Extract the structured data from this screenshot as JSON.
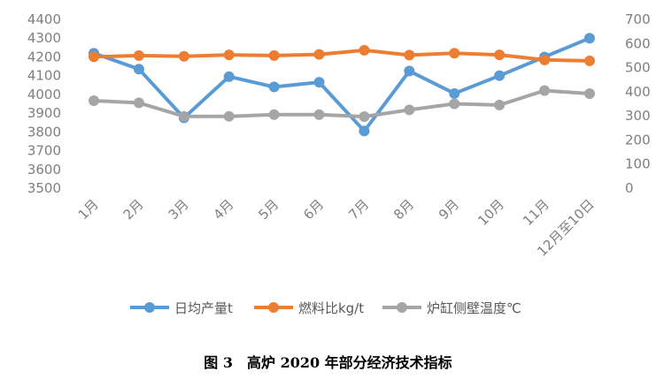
{
  "caption": "图 3　高炉 2020 年部分经济技术指标",
  "chart_data": {
    "type": "line",
    "categories": [
      "1月",
      "2月",
      "3月",
      "4月",
      "5月",
      "6月",
      "7月",
      "8月",
      "9月",
      "10月",
      "11月",
      "12月至10日"
    ],
    "y_left": {
      "min": 3500,
      "max": 4400,
      "step": 100
    },
    "y_right": {
      "min": 0,
      "max": 700,
      "step": 100
    },
    "grid": false,
    "legend_position": "bottom",
    "series": [
      {
        "name": "日均产量t",
        "axis": "left",
        "color": "#5b9bd5",
        "values": [
          4220,
          4135,
          3875,
          4095,
          4040,
          4065,
          3805,
          4125,
          4005,
          4100,
          4200,
          4300
        ]
      },
      {
        "name": "燃料比kg/t",
        "axis": "right",
        "color": "#ed7d31",
        "values": [
          545,
          550,
          547,
          553,
          550,
          555,
          572,
          552,
          560,
          553,
          532,
          528
        ]
      },
      {
        "name": "炉缸侧壁温度℃",
        "axis": "right",
        "color": "#a5a5a5",
        "values": [
          363,
          354,
          298,
          298,
          305,
          305,
          297,
          325,
          350,
          345,
          405,
          392
        ]
      }
    ]
  }
}
